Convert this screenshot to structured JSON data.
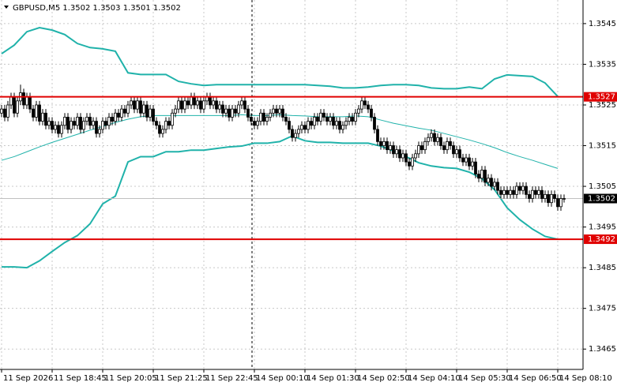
{
  "chart_data": {
    "type": "candlestick",
    "title": "GBPUSD,M5 1.3502 1.3503 1.3501 1.3502",
    "xlim": [
      -0.5,
      184
    ],
    "ylim": [
      1.346,
      1.35508
    ],
    "xticks": [
      {
        "value": 0,
        "label": "11 Sep 2026"
      },
      {
        "value": 16,
        "label": "11 Sep 18:45"
      },
      {
        "value": 32,
        "label": "11 Sep 20:05"
      },
      {
        "value": 48,
        "label": "11 Sep 21:25"
      },
      {
        "value": 64,
        "label": "11 Sep 22:45"
      },
      {
        "value": 80,
        "label": "14 Sep 00:10"
      },
      {
        "value": 96,
        "label": "14 Sep 01:30"
      },
      {
        "value": 112,
        "label": "14 Sep 02:50"
      },
      {
        "value": 128,
        "label": "14 Sep 04:10"
      },
      {
        "value": 144,
        "label": "14 Sep 05:30"
      },
      {
        "value": 160,
        "label": "14 Sep 06:50"
      },
      {
        "value": 176,
        "label": "14 Sep 08:10"
      }
    ],
    "yticks": [
      1.3545,
      1.3535,
      1.3525,
      1.3515,
      1.3505,
      1.3495,
      1.3485,
      1.3475,
      1.3465
    ],
    "grid": true,
    "open": [
      1.3523,
      1.3524,
      1.3522,
      1.3525,
      1.3527,
      1.3523,
      1.3526,
      1.3528,
      1.3525,
      1.3527,
      1.3524,
      1.3522,
      1.3525,
      1.3521,
      1.3523,
      1.352,
      1.3521,
      1.3519,
      1.352,
      1.3518,
      1.352,
      1.3522,
      1.3519,
      1.3521,
      1.352,
      1.3522,
      1.3519,
      1.3521,
      1.3522,
      1.352,
      1.3521,
      1.3518,
      1.3519,
      1.3521,
      1.352,
      1.3522,
      1.3521,
      1.3523,
      1.3522,
      1.3524,
      1.3523,
      1.3525,
      1.3526,
      1.3524,
      1.3526,
      1.3523,
      1.3525,
      1.3522,
      1.3524,
      1.3521,
      1.352,
      1.3518,
      1.3519,
      1.3521,
      1.352,
      1.3523,
      1.3524,
      1.3526,
      1.3524,
      1.3526,
      1.3525,
      1.3527,
      1.3525,
      1.3526,
      1.3524,
      1.3526,
      1.3527,
      1.3525,
      1.3526,
      1.3524,
      1.3525,
      1.3523,
      1.3524,
      1.3522,
      1.3524,
      1.3523,
      1.3525,
      1.3526,
      1.3524,
      1.3522,
      1.3521,
      1.352,
      1.3521,
      1.3523,
      1.3521,
      1.3522,
      1.3523,
      1.3524,
      1.3523,
      1.3524,
      1.3522,
      1.3521,
      1.3519,
      1.3517,
      1.3518,
      1.3519,
      1.352,
      1.3519,
      1.3521,
      1.352,
      1.3522,
      1.3521,
      1.3523,
      1.3522,
      1.3521,
      1.3522,
      1.352,
      1.3521,
      1.3519,
      1.352,
      1.3521,
      1.3522,
      1.3521,
      1.3523,
      1.3524,
      1.3526,
      1.3525,
      1.3524,
      1.3522,
      1.3519,
      1.3516,
      1.3515,
      1.3516,
      1.3514,
      1.3515,
      1.3513,
      1.3514,
      1.3512,
      1.3513,
      1.3511,
      1.351,
      1.3512,
      1.3513,
      1.3515,
      1.3514,
      1.3516,
      1.3517,
      1.3518,
      1.3516,
      1.3517,
      1.3515,
      1.3514,
      1.3516,
      1.3515,
      1.3513,
      1.3514,
      1.3512,
      1.3511,
      1.3512,
      1.351,
      1.3511,
      1.3508,
      1.3507,
      1.3509,
      1.3506,
      1.3507,
      1.3505,
      1.3506,
      1.3504,
      1.3503,
      1.3504,
      1.3503,
      1.3504,
      1.3503,
      1.3505,
      1.3504,
      1.3505,
      1.3503,
      1.3502,
      1.3504,
      1.3503,
      1.3504,
      1.3502,
      1.3503,
      1.3501,
      1.3503,
      1.3502,
      1.35,
      1.3502
    ],
    "high": [
      1.3525,
      1.3525,
      1.3526,
      1.3528,
      1.3528,
      1.3527,
      1.353,
      1.3529,
      1.3528,
      1.3528,
      1.3525,
      1.3526,
      1.3526,
      1.3524,
      1.3524,
      1.3522,
      1.3522,
      1.3521,
      1.3521,
      1.3521,
      1.3523,
      1.3523,
      1.3522,
      1.3522,
      1.3523,
      1.3523,
      1.3522,
      1.3523,
      1.3523,
      1.3522,
      1.3522,
      1.352,
      1.3522,
      1.3522,
      1.3523,
      1.3523,
      1.3524,
      1.3524,
      1.3525,
      1.3525,
      1.3526,
      1.3527,
      1.3527,
      1.3527,
      1.3527,
      1.3526,
      1.3526,
      1.3525,
      1.3525,
      1.3522,
      1.3521,
      1.352,
      1.3522,
      1.3522,
      1.3524,
      1.3525,
      1.3527,
      1.3527,
      1.3527,
      1.3527,
      1.3528,
      1.3528,
      1.3527,
      1.3527,
      1.3527,
      1.3528,
      1.3528,
      1.3527,
      1.3527,
      1.3526,
      1.3526,
      1.3525,
      1.3525,
      1.3525,
      1.3525,
      1.3526,
      1.3527,
      1.3527,
      1.3525,
      1.3523,
      1.3522,
      1.3522,
      1.3524,
      1.3524,
      1.3523,
      1.3524,
      1.3525,
      1.3525,
      1.3525,
      1.3525,
      1.3523,
      1.3522,
      1.352,
      1.3519,
      1.352,
      1.3521,
      1.3521,
      1.3522,
      1.3522,
      1.3523,
      1.3523,
      1.3524,
      1.3524,
      1.3523,
      1.3523,
      1.3523,
      1.3522,
      1.3522,
      1.3521,
      1.3522,
      1.3523,
      1.3523,
      1.3524,
      1.3525,
      1.3527,
      1.3527,
      1.3526,
      1.3525,
      1.3523,
      1.352,
      1.3517,
      1.3517,
      1.3517,
      1.3516,
      1.3516,
      1.3515,
      1.3515,
      1.3514,
      1.3514,
      1.3512,
      1.3513,
      1.3514,
      1.3516,
      1.3516,
      1.3517,
      1.3518,
      1.3519,
      1.3519,
      1.3518,
      1.3518,
      1.3516,
      1.3517,
      1.3517,
      1.3516,
      1.3515,
      1.3515,
      1.3513,
      1.3513,
      1.3513,
      1.3512,
      1.3512,
      1.3509,
      1.351,
      1.351,
      1.3508,
      1.3508,
      1.3507,
      1.3507,
      1.3505,
      1.3505,
      1.3505,
      1.3505,
      1.3505,
      1.3506,
      1.3506,
      1.3506,
      1.3506,
      1.3504,
      1.3505,
      1.3505,
      1.3505,
      1.3505,
      1.3504,
      1.3504,
      1.3504,
      1.3504,
      1.3503,
      1.3503,
      1.3503
    ],
    "low": [
      1.3522,
      1.3521,
      1.3521,
      1.3524,
      1.3522,
      1.3522,
      1.3525,
      1.3524,
      1.3524,
      1.3523,
      1.3521,
      1.3521,
      1.352,
      1.352,
      1.3519,
      1.3519,
      1.3518,
      1.3518,
      1.3517,
      1.3517,
      1.3519,
      1.3518,
      1.3518,
      1.3519,
      1.3519,
      1.3518,
      1.3518,
      1.352,
      1.3519,
      1.3519,
      1.3517,
      1.3517,
      1.3518,
      1.3519,
      1.3519,
      1.352,
      1.352,
      1.3521,
      1.3521,
      1.3522,
      1.3522,
      1.3524,
      1.3523,
      1.3523,
      1.3522,
      1.3522,
      1.3521,
      1.3521,
      1.352,
      1.3519,
      1.3517,
      1.3517,
      1.3518,
      1.3519,
      1.3519,
      1.3522,
      1.3523,
      1.3523,
      1.3523,
      1.3524,
      1.3524,
      1.3524,
      1.3524,
      1.3523,
      1.3523,
      1.3525,
      1.3524,
      1.3524,
      1.3523,
      1.3523,
      1.3522,
      1.3522,
      1.3521,
      1.3521,
      1.3522,
      1.3522,
      1.3524,
      1.3523,
      1.3521,
      1.352,
      1.3519,
      1.3519,
      1.352,
      1.352,
      1.352,
      1.3521,
      1.3522,
      1.3522,
      1.3522,
      1.3521,
      1.352,
      1.3518,
      1.3516,
      1.3516,
      1.3517,
      1.3518,
      1.3518,
      1.3518,
      1.3519,
      1.3519,
      1.352,
      1.352,
      1.3521,
      1.352,
      1.352,
      1.3519,
      1.3519,
      1.3518,
      1.3518,
      1.3519,
      1.352,
      1.352,
      1.352,
      1.3522,
      1.3523,
      1.3524,
      1.3523,
      1.3521,
      1.3518,
      1.3515,
      1.3514,
      1.3514,
      1.3513,
      1.3513,
      1.3512,
      1.3512,
      1.3511,
      1.3511,
      1.351,
      1.3509,
      1.3509,
      1.3511,
      1.3512,
      1.3513,
      1.3513,
      1.3515,
      1.3516,
      1.3515,
      1.3515,
      1.3514,
      1.3513,
      1.3513,
      1.3514,
      1.3512,
      1.3512,
      1.3511,
      1.351,
      1.351,
      1.3509,
      1.3509,
      1.3507,
      1.3506,
      1.3506,
      1.3505,
      1.3505,
      1.3504,
      1.3504,
      1.3503,
      1.3502,
      1.3502,
      1.3502,
      1.3502,
      1.3502,
      1.3502,
      1.3503,
      1.3503,
      1.3502,
      1.3501,
      1.3501,
      1.3502,
      1.3502,
      1.3501,
      1.3501,
      1.35,
      1.35,
      1.3501,
      1.3499,
      1.3499,
      1.3501
    ],
    "close": [
      1.3524,
      1.3522,
      1.3525,
      1.3527,
      1.3523,
      1.3526,
      1.3528,
      1.3525,
      1.3527,
      1.3524,
      1.3522,
      1.3525,
      1.3521,
      1.3523,
      1.352,
      1.3521,
      1.3519,
      1.352,
      1.3518,
      1.352,
      1.3522,
      1.3519,
      1.3521,
      1.352,
      1.3522,
      1.3519,
      1.3521,
      1.3522,
      1.352,
      1.3521,
      1.3518,
      1.3519,
      1.3521,
      1.352,
      1.3522,
      1.3521,
      1.3523,
      1.3522,
      1.3524,
      1.3523,
      1.3525,
      1.3526,
      1.3524,
      1.3526,
      1.3523,
      1.3525,
      1.3522,
      1.3524,
      1.3521,
      1.352,
      1.3518,
      1.3519,
      1.3521,
      1.352,
      1.3523,
      1.3524,
      1.3526,
      1.3524,
      1.3526,
      1.3525,
      1.3527,
      1.3525,
      1.3526,
      1.3524,
      1.3526,
      1.3527,
      1.3525,
      1.3526,
      1.3524,
      1.3525,
      1.3523,
      1.3524,
      1.3522,
      1.3524,
      1.3523,
      1.3525,
      1.3526,
      1.3524,
      1.3522,
      1.3521,
      1.352,
      1.3521,
      1.3523,
      1.3521,
      1.3522,
      1.3523,
      1.3524,
      1.3523,
      1.3524,
      1.3522,
      1.3521,
      1.3519,
      1.3517,
      1.3518,
      1.3519,
      1.352,
      1.3519,
      1.3521,
      1.352,
      1.3522,
      1.3521,
      1.3523,
      1.3522,
      1.3521,
      1.3522,
      1.352,
      1.3521,
      1.3519,
      1.352,
      1.3521,
      1.3522,
      1.3521,
      1.3523,
      1.3524,
      1.3526,
      1.3525,
      1.3524,
      1.3522,
      1.3519,
      1.3516,
      1.3515,
      1.3516,
      1.3514,
      1.3515,
      1.3513,
      1.3514,
      1.3512,
      1.3513,
      1.3511,
      1.351,
      1.3512,
      1.3513,
      1.3515,
      1.3514,
      1.3516,
      1.3517,
      1.3518,
      1.3516,
      1.3517,
      1.3515,
      1.3514,
      1.3516,
      1.3515,
      1.3513,
      1.3514,
      1.3512,
      1.3511,
      1.3512,
      1.351,
      1.3511,
      1.3508,
      1.3507,
      1.3509,
      1.3506,
      1.3507,
      1.3505,
      1.3506,
      1.3504,
      1.3503,
      1.3504,
      1.3503,
      1.3504,
      1.3503,
      1.3505,
      1.3504,
      1.3505,
      1.3503,
      1.3502,
      1.3504,
      1.3503,
      1.3504,
      1.3502,
      1.3503,
      1.3501,
      1.3503,
      1.3502,
      1.35,
      1.3502,
      1.3502
    ],
    "bands": {
      "x": [
        0,
        4,
        8,
        12,
        16,
        20,
        24,
        28,
        32,
        36,
        40,
        44,
        48,
        52,
        56,
        60,
        64,
        68,
        72,
        76,
        80,
        84,
        88,
        92,
        96,
        100,
        104,
        108,
        112,
        116,
        120,
        124,
        128,
        132,
        136,
        140,
        144,
        148,
        152,
        156,
        160,
        164,
        168,
        172,
        176
      ],
      "color": "#20b2aa",
      "series": [
        {
          "values": [
            1.35376,
            1.35397,
            1.3543,
            1.3544,
            1.35434,
            1.35423,
            1.35401,
            1.35391,
            1.35388,
            1.35382,
            1.35329,
            1.35325,
            1.35325,
            1.35325,
            1.35308,
            1.35302,
            1.35298,
            1.353,
            1.353,
            1.353,
            1.353,
            1.353,
            1.353,
            1.353,
            1.353,
            1.35298,
            1.35296,
            1.35292,
            1.35292,
            1.35294,
            1.35298,
            1.353,
            1.353,
            1.35298,
            1.35292,
            1.3529,
            1.3529,
            1.35294,
            1.3529,
            1.35314,
            1.35324,
            1.35322,
            1.3532,
            1.35304,
            1.35271
          ],
          "width": 2
        },
        {
          "values": [
            1.35114,
            1.35123,
            1.35135,
            1.35147,
            1.35158,
            1.35168,
            1.35178,
            1.35188,
            1.35197,
            1.35207,
            1.35215,
            1.35221,
            1.35224,
            1.35224,
            1.35224,
            1.35224,
            1.35224,
            1.35224,
            1.35224,
            1.35226,
            1.35224,
            1.35224,
            1.35226,
            1.35224,
            1.35223,
            1.35221,
            1.35221,
            1.35221,
            1.35223,
            1.35221,
            1.35213,
            1.35205,
            1.35199,
            1.35193,
            1.35188,
            1.3518,
            1.35172,
            1.35164,
            1.35155,
            1.35145,
            1.35133,
            1.35123,
            1.35114,
            1.35104,
            1.35094
          ],
          "width": 1
        },
        {
          "values": [
            1.34852,
            1.34852,
            1.3485,
            1.34867,
            1.3489,
            1.34912,
            1.34929,
            1.34958,
            1.35007,
            1.35026,
            1.3511,
            1.35123,
            1.35123,
            1.35135,
            1.35135,
            1.35139,
            1.35139,
            1.35143,
            1.35147,
            1.35149,
            1.35156,
            1.35156,
            1.3516,
            1.35174,
            1.35162,
            1.35158,
            1.35158,
            1.35156,
            1.35156,
            1.35156,
            1.35149,
            1.35137,
            1.35123,
            1.35108,
            1.351,
            1.35096,
            1.35094,
            1.35085,
            1.35069,
            1.35042,
            1.34997,
            1.34968,
            1.34945,
            1.34927,
            1.3492
          ],
          "width": 2
        }
      ]
    },
    "levels": [
      1.3527,
      1.3492
    ],
    "level_color": "#e00000",
    "last": 1.3502
  }
}
